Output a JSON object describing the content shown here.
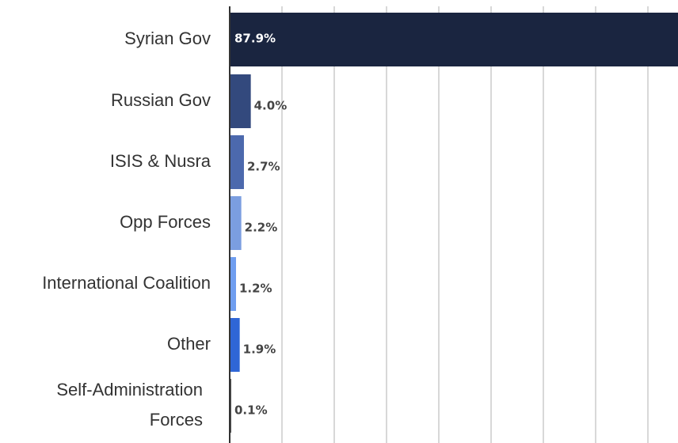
{
  "chart_data": {
    "type": "bar",
    "orientation": "horizontal",
    "title": "",
    "xlabel": "",
    "ylabel": "",
    "categories": [
      [
        "Syrian Gov"
      ],
      [
        "Russian Gov"
      ],
      [
        "ISIS & Nusra"
      ],
      [
        "Opp Forces"
      ],
      [
        "International Coalition"
      ],
      [
        "Other"
      ],
      [
        "Self-Administration",
        "Forces"
      ]
    ],
    "values": [
      87.9,
      4.0,
      2.7,
      2.2,
      1.2,
      1.9,
      0.1
    ],
    "value_labels": [
      "87.9%",
      "4.0%",
      "2.7%",
      "2.2%",
      "1.2%",
      "1.9%",
      "0.1%"
    ],
    "colors": [
      "#1a2540",
      "#33497d",
      "#4c69ad",
      "#7b9ee0",
      "#6f9ef0",
      "#2f66d6",
      "#555555"
    ],
    "xlim": [
      0,
      85
    ],
    "grid": true,
    "legend": "none"
  }
}
